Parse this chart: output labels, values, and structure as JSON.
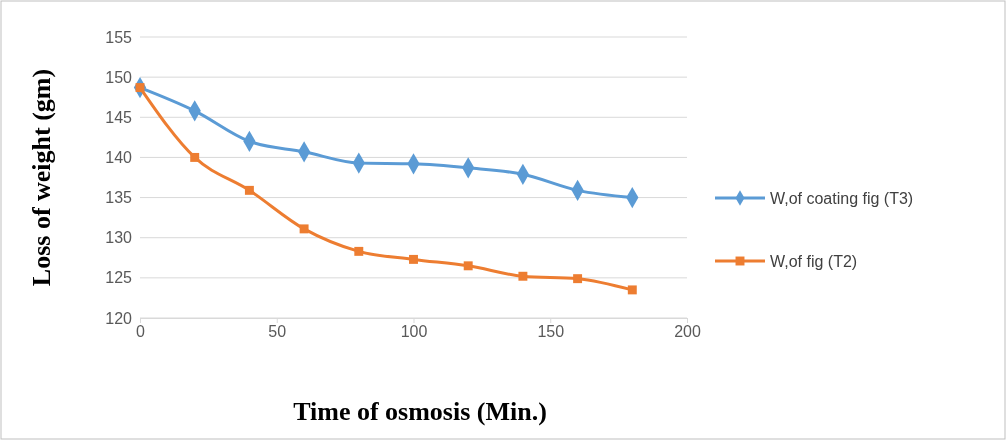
{
  "chart_data": {
    "type": "line",
    "xlabel": "Time of osmosis (Min.)",
    "ylabel": "Loss of  weight (gm)",
    "x": [
      0,
      20,
      40,
      60,
      80,
      100,
      120,
      140,
      160,
      180
    ],
    "series": [
      {
        "name": "W,of coating fig (T3)",
        "color": "#5b9bd5",
        "marker": "diamond",
        "values": [
          148.7,
          145.8,
          142,
          140.7,
          139.3,
          139.2,
          138.7,
          137.9,
          135.9,
          135
        ]
      },
      {
        "name": "W,of fig (T2)",
        "color": "#ed7d31",
        "marker": "square",
        "values": [
          148.7,
          140,
          135.9,
          131.1,
          128.3,
          127.3,
          126.5,
          125.2,
          124.9,
          123.5
        ]
      }
    ],
    "xlim": [
      0,
      200
    ],
    "xticks": [
      0,
      50,
      100,
      150,
      200
    ],
    "ylim": [
      120,
      155
    ],
    "yticks": [
      120,
      125,
      130,
      135,
      140,
      145,
      150,
      155
    ],
    "grid": "y",
    "legend": "right",
    "line_style": "solid"
  }
}
